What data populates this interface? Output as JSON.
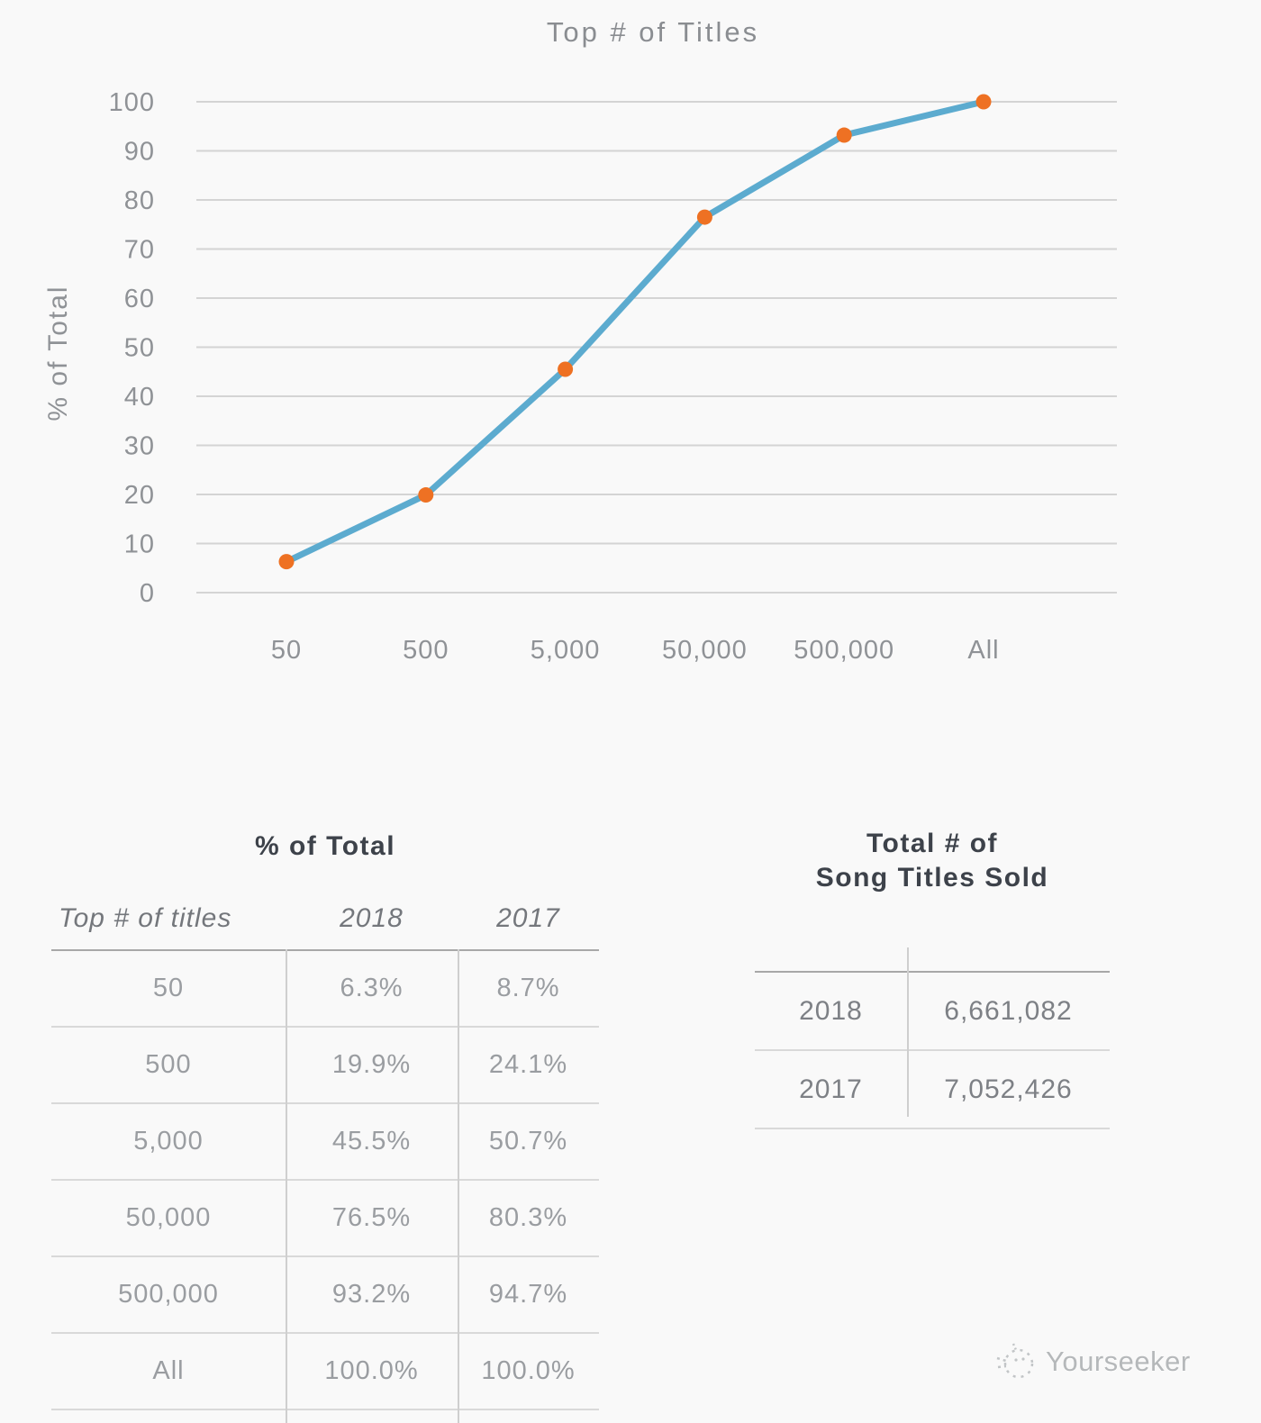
{
  "colors": {
    "line": "#5cabcf",
    "marker": "#ee7123",
    "grid": "#d4d4d4",
    "axis_text": "#8f9296",
    "chart_title_text": "#8a8d91",
    "heading_text": "#3d424a",
    "table_text": "#9a9da1",
    "watermark_gray": "#c2c5c7"
  },
  "chart_data": {
    "type": "line",
    "title": "Top # of Titles",
    "ylabel": "% of Total",
    "xlabel": "",
    "categories": [
      "50",
      "500",
      "5,000",
      "50,000",
      "500,000",
      "All"
    ],
    "series": [
      {
        "name": "2018",
        "values": [
          6.3,
          19.9,
          45.5,
          76.5,
          93.2,
          100.0
        ]
      }
    ],
    "ylim": [
      0,
      100
    ],
    "yticks": [
      0,
      10,
      20,
      30,
      40,
      50,
      60,
      70,
      80,
      90,
      100
    ],
    "grid": true,
    "legend": false,
    "marker_shape": "circle"
  },
  "left_table": {
    "title": "% of Total",
    "columns": [
      "Top # of titles",
      "2018",
      "2017"
    ],
    "rows": [
      [
        "50",
        "6.3%",
        "8.7%"
      ],
      [
        "500",
        "19.9%",
        "24.1%"
      ],
      [
        "5,000",
        "45.5%",
        "50.7%"
      ],
      [
        "50,000",
        "76.5%",
        "80.3%"
      ],
      [
        "500,000",
        "93.2%",
        "94.7%"
      ],
      [
        "All",
        "100.0%",
        "100.0%"
      ]
    ]
  },
  "right_table": {
    "title_line1": "Total # of",
    "title_line2": "Song Titles Sold",
    "rows": [
      [
        "2018",
        "6,661,082"
      ],
      [
        "2017",
        "7,052,426"
      ]
    ]
  },
  "watermark": {
    "label": "Yourseeker"
  }
}
